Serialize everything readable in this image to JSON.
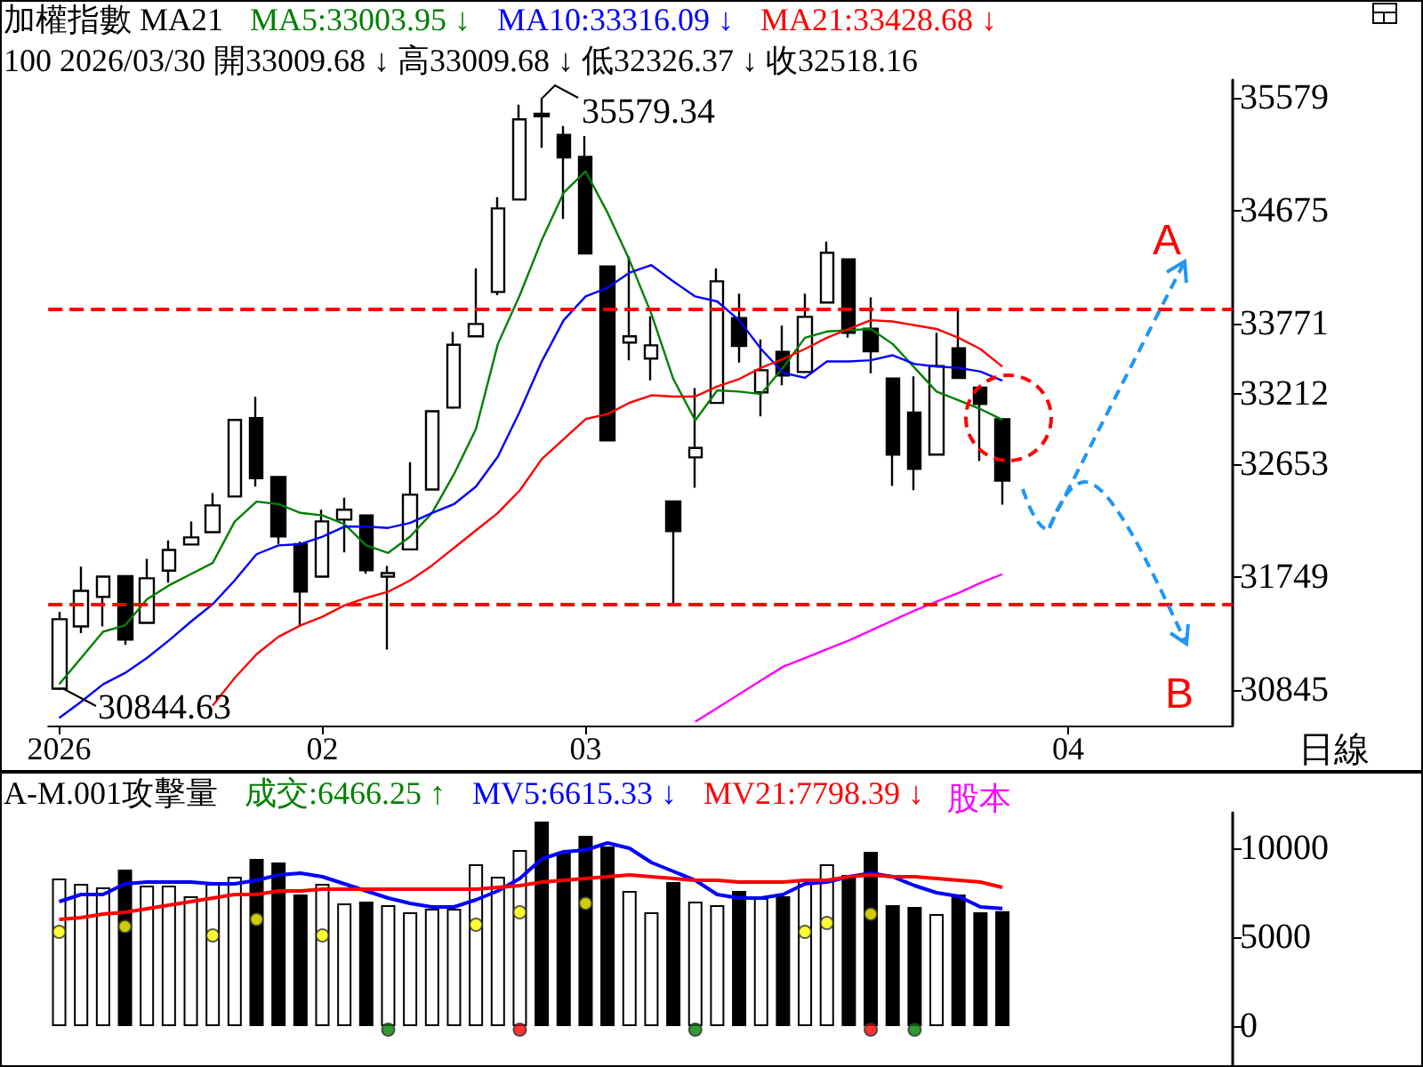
{
  "chart_data": [
    {
      "type": "candlestick",
      "title": "加權指數 MA21",
      "subtitle": "100 2026/03/30 開33009.68 ↓ 高33009.68 ↓ 低32326.37 ↓ 收32518.16",
      "categories": [
        "2026",
        null,
        null,
        null,
        null,
        null,
        null,
        null,
        null,
        null,
        null,
        null,
        "02",
        null,
        null,
        null,
        null,
        null,
        null,
        null,
        null,
        null,
        null,
        null,
        "03",
        null,
        null,
        null,
        null,
        null,
        null,
        null,
        null,
        null,
        null,
        null,
        null,
        null,
        null,
        null,
        null,
        null,
        null,
        null,
        null,
        null,
        "04",
        null,
        null,
        null,
        null,
        null,
        null,
        null
      ],
      "ohlc": [
        [
          30855,
          31470,
          30844.63,
          31410
        ],
        [
          31353,
          31830,
          31300,
          31637
        ],
        [
          31589,
          31760,
          31353,
          31751
        ],
        [
          31755,
          31760,
          31205,
          31247
        ],
        [
          31381,
          31893,
          31381,
          31737
        ],
        [
          31798,
          32040,
          31702,
          31964
        ],
        [
          32007,
          32192,
          32007,
          32064
        ],
        [
          32106,
          32419,
          32106,
          32320
        ],
        [
          32391,
          33003,
          32391,
          33003
        ],
        [
          33017,
          33188,
          32470,
          32537
        ],
        [
          32547,
          32547,
          32011,
          32072
        ],
        [
          32011,
          32030,
          31361,
          31631
        ],
        [
          31751,
          32285,
          31751,
          32192
        ],
        [
          32206,
          32381,
          31944,
          32285
        ],
        [
          32239,
          32239,
          31774,
          31802
        ],
        [
          31751,
          31836,
          31168,
          31779
        ],
        [
          31968,
          32665,
          31968,
          32405
        ],
        [
          32447,
          33073,
          32447,
          33073
        ],
        [
          33102,
          33707,
          33092,
          33604
        ],
        [
          33671,
          34215,
          33671,
          33770
        ],
        [
          34026,
          34784,
          34000,
          34694
        ],
        [
          34765,
          35523,
          34765,
          35405
        ],
        [
          35450,
          35579.34,
          35178,
          35430
        ],
        [
          35282,
          35353,
          34609,
          35101
        ],
        [
          35105,
          35272,
          34333,
          34333
        ],
        [
          34229,
          34229,
          32840,
          32840
        ],
        [
          33622,
          34310,
          33480,
          33671
        ],
        [
          33494,
          33831,
          33319,
          33599
        ],
        [
          32352,
          32352,
          31530,
          32115
        ],
        [
          32704,
          33258,
          32462,
          32779
        ],
        [
          33139,
          34215,
          33139,
          34111
        ],
        [
          33817,
          34012,
          33461,
          33594
        ],
        [
          33224,
          33646,
          33031,
          33400
        ],
        [
          33547,
          33756,
          33281,
          33358
        ],
        [
          33386,
          34012,
          33386,
          33827
        ],
        [
          33941,
          34428,
          33941,
          34339
        ],
        [
          34286,
          34286,
          33661,
          33699
        ],
        [
          33732,
          33983,
          33376,
          33551
        ],
        [
          33334,
          33334,
          32476,
          32726
        ],
        [
          33063,
          33352,
          32442,
          32612
        ],
        [
          32726,
          33699,
          32726,
          33433
        ],
        [
          33575,
          33884,
          33338,
          33338
        ],
        [
          33262,
          33262,
          32675,
          33130
        ],
        [
          33009.68,
          33009.68,
          32326.37,
          32518.16
        ],
        null,
        null,
        null,
        null,
        null,
        null,
        null,
        null,
        null,
        null
      ],
      "series": [
        {
          "name": "MA5:33003.95 ↓",
          "type": "line",
          "color": "#008000",
          "values": [
            30890,
            31100,
            31310,
            31360,
            31570,
            31680,
            31770,
            31860,
            32190,
            32350,
            32330,
            32260,
            32240,
            32170,
            32000,
            31940,
            32070,
            32260,
            32570,
            32930,
            33610,
            34000,
            34440,
            34820,
            34990,
            34660,
            34280,
            33850,
            33330,
            33000,
            33240,
            33230,
            33210,
            33420,
            33660,
            33710,
            33720,
            33730,
            33610,
            33420,
            33230,
            33160,
            33090,
            33003.95,
            null,
            null,
            null,
            null,
            null,
            null,
            null,
            null,
            null,
            null
          ]
        },
        {
          "name": "MA10:33316.09 ↓",
          "type": "line",
          "color": "#0000ff",
          "values": [
            30620,
            30750,
            30890,
            30980,
            31100,
            31240,
            31390,
            31530,
            31720,
            31930,
            32000,
            32010,
            32070,
            32150,
            32150,
            32140,
            32180,
            32260,
            32330,
            32470,
            32710,
            33070,
            33470,
            33800,
            33990,
            34060,
            34180,
            34240,
            34110,
            33990,
            33950,
            33800,
            33570,
            33380,
            33340,
            33470,
            33470,
            33480,
            33520,
            33450,
            33430,
            33420,
            33390,
            33316.09,
            null,
            null,
            null,
            null,
            null,
            null,
            null,
            null,
            null,
            null
          ]
        },
        {
          "name": "MA21:33428.68 ↓",
          "type": "line",
          "color": "#ff0000",
          "values": [
            null,
            null,
            null,
            null,
            null,
            null,
            null,
            30720,
            30940,
            31130,
            31270,
            31360,
            31430,
            31520,
            31580,
            31630,
            31720,
            31840,
            31980,
            32120,
            32260,
            32440,
            32690,
            32850,
            33010,
            33050,
            33140,
            33200,
            33190,
            33190,
            33270,
            33330,
            33420,
            33490,
            33570,
            33660,
            33730,
            33800,
            33790,
            33760,
            33730,
            33660,
            33570,
            33428.68,
            null,
            null,
            null,
            null,
            null,
            null,
            null,
            null,
            null,
            null
          ]
        },
        {
          "type": "line",
          "color": "#ff00ff",
          "values": [
            null,
            null,
            null,
            null,
            null,
            null,
            null,
            null,
            null,
            null,
            null,
            null,
            null,
            null,
            null,
            null,
            null,
            null,
            null,
            null,
            null,
            null,
            null,
            null,
            null,
            null,
            null,
            null,
            null,
            30590,
            30700,
            30810,
            30920,
            31030,
            31100,
            31170,
            31240,
            31320,
            31400,
            31480,
            31550,
            31620,
            31700,
            31770,
            null,
            null,
            null,
            null,
            null,
            null,
            null,
            null,
            null,
            null
          ]
        }
      ],
      "ylim": [
        30560,
        35720
      ],
      "yticks": [
        30845,
        31749,
        32653,
        33212,
        33771,
        34675,
        35579
      ],
      "ref_lines": [
        {
          "axis": "y",
          "value": 33888,
          "color": "#ff0000",
          "line_style": "dashed"
        },
        {
          "axis": "y",
          "value": 31530,
          "color": "#ff0000",
          "line_style": "dashed"
        }
      ],
      "annotations": [
        "35579.34",
        "30844.63",
        "A",
        "B",
        "日線"
      ],
      "legend": "top left",
      "marker": "none",
      "grid": false
    },
    {
      "type": "bar",
      "title": "A-M.001攻擊量",
      "categories": [
        null,
        null,
        null,
        null,
        null,
        null,
        null,
        null,
        null,
        null,
        null,
        null,
        null,
        null,
        null,
        null,
        null,
        null,
        null,
        null,
        null,
        null,
        null,
        null,
        null,
        null,
        null,
        null,
        null,
        null,
        null,
        null,
        null,
        null,
        null,
        null,
        null,
        null,
        null,
        null,
        null,
        null,
        null,
        null,
        null,
        null,
        null,
        null,
        null,
        null,
        null,
        null,
        null,
        null
      ],
      "series": [
        {
          "name": "成交:6466.25 ↑",
          "color": "#008000",
          "colors": [
            "#ffffff",
            "#ffffff",
            "#ffffff",
            "#000000",
            "#ffffff",
            "#ffffff",
            "#ffffff",
            "#ffffff",
            "#ffffff",
            "#000000",
            "#000000",
            "#000000",
            "#ffffff",
            "#ffffff",
            "#000000",
            "#ffffff",
            "#ffffff",
            "#ffffff",
            "#ffffff",
            "#ffffff",
            "#ffffff",
            "#ffffff",
            "#000000",
            "#000000",
            "#000000",
            "#000000",
            "#ffffff",
            "#ffffff",
            "#000000",
            "#ffffff",
            "#ffffff",
            "#000000",
            "#ffffff",
            "#000000",
            "#ffffff",
            "#ffffff",
            "#000000",
            "#000000",
            "#000000",
            "#000000",
            "#ffffff",
            "#000000",
            "#000000",
            "#000000",
            null,
            null,
            null,
            null,
            null,
            null,
            null,
            null,
            null,
            null
          ],
          "values": [
            8300,
            8000,
            7800,
            8800,
            7900,
            7900,
            7300,
            8000,
            8400,
            9400,
            9200,
            7400,
            8000,
            6900,
            7000,
            6800,
            6400,
            6600,
            6600,
            9100,
            8400,
            9900,
            11500,
            9800,
            10700,
            10100,
            7600,
            6400,
            8100,
            7000,
            6800,
            7600,
            7200,
            7300,
            8200,
            9100,
            8500,
            9800,
            6800,
            6700,
            6300,
            7400,
            6400,
            6466.25,
            null,
            null,
            null,
            null,
            null,
            null,
            null,
            null,
            null,
            null
          ]
        },
        {
          "name": "MV5:6615.33 ↓",
          "type": "line",
          "color": "#0000ff",
          "values": [
            7000,
            7400,
            7400,
            8000,
            8100,
            8100,
            8100,
            8000,
            8000,
            8200,
            8500,
            8600,
            8400,
            8000,
            7600,
            7200,
            6900,
            6700,
            6700,
            7100,
            7600,
            8300,
            9400,
            9800,
            9900,
            10300,
            10000,
            9200,
            8700,
            8200,
            7400,
            7200,
            7200,
            7400,
            8000,
            8100,
            8400,
            8600,
            8400,
            7900,
            7500,
            7300,
            6700,
            6615.33,
            null,
            null,
            null,
            null,
            null,
            null,
            null,
            null,
            null,
            null
          ]
        },
        {
          "name": "MV21:7798.39 ↓",
          "type": "line",
          "color": "#ff0000",
          "values": [
            6000,
            6100,
            6300,
            6400,
            6600,
            6800,
            7000,
            7200,
            7400,
            7400,
            7600,
            7600,
            7700,
            7700,
            7700,
            7700,
            7700,
            7700,
            7700,
            7700,
            7800,
            7900,
            8100,
            8200,
            8300,
            8400,
            8500,
            8400,
            8300,
            8200,
            8200,
            8100,
            8100,
            8100,
            8200,
            8200,
            8400,
            8500,
            8400,
            8400,
            8300,
            8200,
            8100,
            7798.39,
            null,
            null,
            null,
            null,
            null,
            null,
            null,
            null,
            null,
            null
          ]
        },
        {
          "type": "scatter",
          "color": "#ffff00",
          "values": [
            5300,
            null,
            null,
            5600,
            null,
            null,
            null,
            5100,
            null,
            6000,
            null,
            null,
            5100,
            null,
            null,
            null,
            null,
            null,
            null,
            5700,
            null,
            6400,
            null,
            null,
            6900,
            null,
            null,
            null,
            null,
            null,
            null,
            null,
            null,
            null,
            5300,
            5800,
            null,
            6300,
            null,
            null,
            null,
            null,
            null,
            null,
            null,
            null,
            null,
            null,
            null,
            null,
            null,
            null,
            null,
            null
          ]
        },
        {
          "type": "scatter",
          "color": "#008000",
          "values": [
            null,
            null,
            null,
            null,
            null,
            null,
            null,
            null,
            null,
            null,
            null,
            null,
            null,
            null,
            null,
            -200,
            null,
            null,
            null,
            null,
            null,
            null,
            null,
            null,
            null,
            null,
            null,
            null,
            null,
            -200,
            null,
            null,
            null,
            null,
            null,
            null,
            null,
            null,
            null,
            -200,
            null,
            null,
            null,
            null,
            null,
            null,
            null,
            null,
            null,
            null,
            null,
            null,
            null,
            null
          ]
        },
        {
          "type": "scatter",
          "color": "#ff0000",
          "values": [
            null,
            null,
            null,
            null,
            null,
            null,
            null,
            null,
            null,
            null,
            null,
            null,
            null,
            null,
            null,
            null,
            null,
            null,
            null,
            null,
            null,
            -200,
            null,
            null,
            null,
            null,
            null,
            null,
            null,
            null,
            null,
            null,
            null,
            null,
            null,
            null,
            null,
            -200,
            null,
            null,
            null,
            null,
            null,
            null,
            null,
            null,
            null,
            null,
            null,
            null,
            null,
            null,
            null,
            null
          ]
        }
      ],
      "ylim": [
        -2200,
        12000
      ],
      "yticks": [
        0,
        5000,
        10000
      ],
      "annotations": [
        "股本"
      ],
      "legend": "top left",
      "grid": false,
      "tick_labels": "y"
    }
  ]
}
